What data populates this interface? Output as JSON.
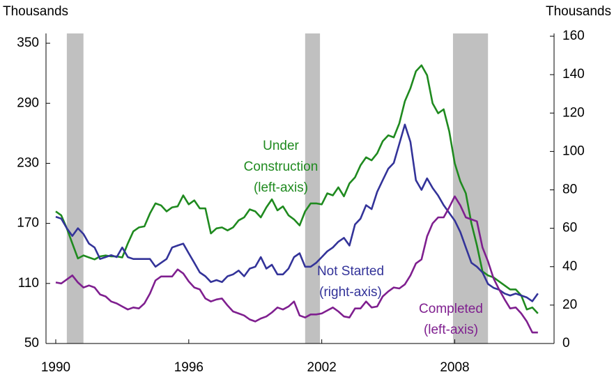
{
  "chart_data": {
    "type": "line",
    "left_axis_label": "Thousands",
    "right_axis_label": "Thousands",
    "x": [
      1990,
      1990.25,
      1990.5,
      1990.75,
      1991,
      1991.25,
      1991.5,
      1991.75,
      1992,
      1992.25,
      1992.5,
      1992.75,
      1993,
      1993.25,
      1993.5,
      1993.75,
      1994,
      1994.25,
      1994.5,
      1994.75,
      1995,
      1995.25,
      1995.5,
      1995.75,
      1996,
      1996.25,
      1996.5,
      1996.75,
      1997,
      1997.25,
      1997.5,
      1997.75,
      1998,
      1998.25,
      1998.5,
      1998.75,
      1999,
      1999.25,
      1999.5,
      1999.75,
      2000,
      2000.25,
      2000.5,
      2000.75,
      2001,
      2001.25,
      2001.5,
      2001.75,
      2002,
      2002.25,
      2002.5,
      2002.75,
      2003,
      2003.25,
      2003.5,
      2003.75,
      2004,
      2004.25,
      2004.5,
      2004.75,
      2005,
      2005.25,
      2005.5,
      2005.75,
      2006,
      2006.25,
      2006.5,
      2006.75,
      2007,
      2007.25,
      2007.5,
      2007.75,
      2008,
      2008.25,
      2008.5,
      2008.75,
      2009,
      2009.25,
      2009.5,
      2009.75,
      2010,
      2010.25,
      2010.5,
      2010.75,
      2011,
      2011.25,
      2011.5,
      2011.75
    ],
    "xlim": [
      1989.56,
      2012.48
    ],
    "xticks": [
      1990,
      1996,
      2002,
      2008
    ],
    "ylim": [
      50,
      357
    ],
    "yticks": [
      50,
      110,
      170,
      230,
      290,
      350
    ],
    "y2lim": [
      0,
      160
    ],
    "y2ticks": [
      0,
      20,
      40,
      60,
      80,
      100,
      120,
      140,
      160
    ],
    "recessions": [
      [
        1990.5,
        1991.25
      ],
      [
        2001.25,
        2001.92
      ],
      [
        2007.92,
        2009.5
      ]
    ],
    "recession_color": "#c0c0c0",
    "series": [
      {
        "name": "Under Construction",
        "color": "#1f8a1f",
        "values": [
          182,
          178,
          165,
          150,
          135,
          138,
          136,
          134,
          137,
          138,
          137,
          137,
          136,
          150,
          162,
          166,
          167,
          180,
          190,
          188,
          182,
          186,
          187,
          198,
          189,
          193,
          185,
          185,
          160,
          165,
          166,
          163,
          166,
          173,
          176,
          184,
          182,
          176,
          186,
          194,
          183,
          187,
          178,
          174,
          168,
          182,
          190,
          190,
          189,
          200,
          198,
          206,
          197,
          210,
          216,
          228,
          236,
          233,
          240,
          252,
          258,
          256,
          270,
          292,
          305,
          322,
          328,
          318,
          290,
          280,
          284,
          262,
          230,
          212,
          200,
          170,
          148,
          122,
          118,
          116,
          112,
          108,
          104,
          104,
          98,
          84,
          86,
          80
        ]
      },
      {
        "name": "Not Started",
        "color": "#333399",
        "axis": "y2",
        "values": [
          66,
          65,
          60,
          56,
          60,
          57,
          52,
          50,
          44,
          45,
          46,
          45,
          50,
          45,
          44,
          44,
          44,
          44,
          40,
          42,
          44,
          50,
          51,
          52,
          47,
          42,
          37,
          35,
          32,
          33,
          32,
          35,
          36,
          38,
          35,
          39,
          40,
          45,
          39,
          41,
          36,
          36,
          39,
          45,
          47,
          40,
          40,
          42,
          45,
          48,
          50,
          53,
          55,
          51,
          62,
          65,
          72,
          70,
          79,
          85,
          91,
          94,
          104,
          114,
          105,
          85,
          80,
          86,
          81,
          77,
          72,
          68,
          64,
          58,
          50,
          42,
          40,
          37,
          31,
          29,
          28,
          26,
          25,
          26,
          25,
          24,
          22,
          26
        ]
      },
      {
        "name": "Completed",
        "color": "#7f1f8f",
        "values": [
          111,
          110,
          114,
          118,
          111,
          106,
          108,
          106,
          99,
          97,
          92,
          90,
          87,
          84,
          86,
          85,
          90,
          100,
          113,
          117,
          117,
          117,
          124,
          120,
          112,
          106,
          104,
          95,
          92,
          94,
          95,
          88,
          82,
          80,
          78,
          74,
          72,
          75,
          77,
          81,
          86,
          84,
          87,
          92,
          78,
          76,
          79,
          79,
          80,
          83,
          86,
          82,
          77,
          76,
          85,
          85,
          92,
          86,
          87,
          97,
          102,
          106,
          105,
          109,
          118,
          130,
          134,
          157,
          170,
          176,
          176,
          186,
          197,
          188,
          176,
          174,
          172,
          146,
          132,
          115,
          104,
          94,
          85,
          86,
          80,
          72,
          61,
          61
        ]
      }
    ],
    "annotations": [
      {
        "lines": [
          "Under",
          "Construction",
          "(left-axis)"
        ],
        "color": "#1f8a1f"
      },
      {
        "lines": [
          "Not Started",
          "(right-axis)"
        ],
        "color": "#333399"
      },
      {
        "lines": [
          "Completed",
          "(left-axis)"
        ],
        "color": "#7f1f8f"
      }
    ]
  }
}
